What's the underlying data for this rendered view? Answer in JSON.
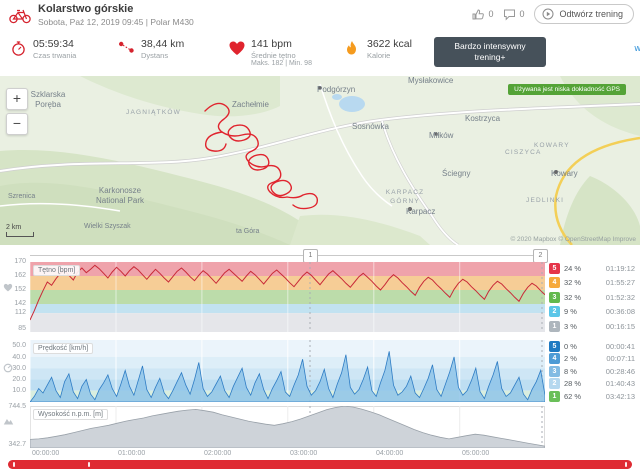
{
  "header": {
    "title": "Kolarstwo górskie",
    "subtitle": "Sobota, Paź 12, 2019 09:45  |  Polar M430",
    "likes": "0",
    "comments": "0",
    "replay_label": "Odtwórz trening"
  },
  "stats": {
    "duration": {
      "value": "05:59:34",
      "label": "Czas trwania"
    },
    "distance": {
      "value": "38,44 km",
      "label": "Dystans"
    },
    "heart_rate": {
      "value": "141 bpm",
      "label": "Średnie tętno",
      "minmax": "Maks. 182 | Min. 98"
    },
    "calories": {
      "value": "3622 kcal",
      "label": "Kalorie"
    },
    "intensity_badge": "Bardzo intensywny trening+",
    "more_link": "wi"
  },
  "map": {
    "zoom_in": "+",
    "zoom_out": "−",
    "gps_notice": "Używana jest niska dokładność GPS",
    "scale_label": "2 km",
    "attribution": "© 2020 Mapbox © OpenStreetMap Improve",
    "labels": [
      {
        "text": "Szklarska Poręba"
      },
      {
        "text": "JAGNIĄTKÓW"
      },
      {
        "text": "Zachełmie"
      },
      {
        "text": "Podgórzyn"
      },
      {
        "text": "Mysłakowice"
      },
      {
        "text": "Sosnówka"
      },
      {
        "text": "Miłków"
      },
      {
        "text": "Kostrzyca"
      },
      {
        "text": "CISZYCA"
      },
      {
        "text": "KOWARY"
      },
      {
        "text": "Kowary"
      },
      {
        "text": "Ściegny"
      },
      {
        "text": "KARPACZ GÓRNY"
      },
      {
        "text": "Karpacz"
      },
      {
        "text": "JEDLINKI"
      },
      {
        "text": "Karkonosze National Park"
      },
      {
        "text": "Wielki Szyszak"
      },
      {
        "text": "Szrenica"
      },
      {
        "text": "ta Góra"
      }
    ]
  },
  "charts": {
    "lap_markers": [
      "1",
      "2"
    ],
    "x_labels": [
      "00:00:00",
      "01:00:00",
      "02:00:00",
      "03:00:00",
      "04:00:00",
      "05:00:00"
    ],
    "heart_rate": {
      "label": "Tętno [bpm]",
      "y_labels": [
        "170",
        "162",
        "152",
        "142",
        "112",
        "85"
      ],
      "zones": [
        {
          "zone": "5",
          "pct": "24 %",
          "time": "01:19:12",
          "color": "#e5354a"
        },
        {
          "zone": "4",
          "pct": "32 %",
          "time": "01:55:27",
          "color": "#f6a93b"
        },
        {
          "zone": "3",
          "pct": "32 %",
          "time": "01:52:32",
          "color": "#63b94d"
        },
        {
          "zone": "2",
          "pct": "9 %",
          "time": "00:36:08",
          "color": "#5bc6e8"
        },
        {
          "zone": "1",
          "pct": "3 %",
          "time": "00:16:15",
          "color": "#aeb6bd"
        }
      ],
      "values": [
        98,
        112,
        128,
        142,
        155,
        150,
        160,
        168,
        172,
        165,
        158,
        170,
        176,
        169,
        174,
        180,
        175,
        168,
        161,
        170,
        177,
        171,
        164,
        172,
        178,
        173,
        166,
        159,
        167,
        174,
        168,
        161,
        155,
        163,
        171,
        176,
        170,
        163,
        157,
        165,
        172,
        167,
        160,
        153,
        161,
        169,
        174,
        168,
        162,
        156,
        164,
        171,
        166,
        159,
        152,
        160,
        168,
        173,
        167,
        161,
        154,
        148,
        156,
        164,
        170,
        165,
        158,
        151,
        159,
        167,
        172,
        166,
        160,
        153,
        147,
        155,
        163,
        168,
        162,
        156,
        149,
        143,
        151,
        160,
        166,
        161,
        154,
        148,
        141,
        135,
        147,
        156,
        162,
        158,
        151,
        145,
        138,
        132,
        144,
        153,
        159,
        155,
        148,
        142,
        135,
        129,
        141,
        150,
        156,
        152,
        145,
        139,
        132,
        126,
        138,
        147,
        153,
        149,
        142,
        136
      ]
    },
    "speed": {
      "label": "Prędkość [km/h]",
      "y_labels": [
        "50.0",
        "40.0",
        "30.0",
        "20.0",
        "10.0"
      ],
      "zones": [
        {
          "zone": "5",
          "pct": "0 %",
          "time": "00:00:41",
          "color": "#1f7ac2"
        },
        {
          "zone": "4",
          "pct": "2 %",
          "time": "00:07:11",
          "color": "#4d9bd5"
        },
        {
          "zone": "3",
          "pct": "8 %",
          "time": "00:28:46",
          "color": "#82bbe3"
        },
        {
          "zone": "2",
          "pct": "28 %",
          "time": "01:40:43",
          "color": "#b5d8ef"
        },
        {
          "zone": "1",
          "pct": "62 %",
          "time": "03:42:13",
          "color": "#6abf59"
        }
      ],
      "values": [
        0,
        5,
        12,
        8,
        15,
        22,
        10,
        4,
        18,
        25,
        9,
        3,
        14,
        20,
        7,
        2,
        11,
        17,
        24,
        12,
        5,
        16,
        28,
        14,
        6,
        19,
        32,
        11,
        4,
        13,
        21,
        8,
        3,
        10,
        18,
        26,
        15,
        7,
        20,
        35,
        12,
        5,
        9,
        16,
        23,
        10,
        4,
        14,
        22,
        30,
        13,
        6,
        17,
        25,
        11,
        3,
        12,
        19,
        27,
        9,
        5,
        15,
        24,
        38,
        14,
        6,
        10,
        18,
        29,
        12,
        4,
        16,
        26,
        42,
        13,
        7,
        11,
        20,
        31,
        10,
        5,
        17,
        28,
        45,
        15,
        6,
        9,
        14,
        23,
        8,
        4,
        12,
        21,
        33,
        11,
        5,
        16,
        27,
        40,
        13,
        6,
        10,
        19,
        30,
        9,
        3,
        14,
        24,
        36,
        12,
        5,
        8,
        15,
        22,
        7,
        2,
        11,
        18,
        28,
        6
      ]
    },
    "altitude": {
      "label": "Wysokość n.p.m. [m]",
      "y_max": "744.5",
      "y_min": "342.7",
      "values": [
        425,
        430,
        440,
        455,
        470,
        490,
        510,
        530,
        545,
        560,
        580,
        600,
        615,
        630,
        650,
        665,
        680,
        695,
        705,
        712,
        700,
        685,
        660,
        640,
        620,
        600,
        585,
        570,
        560,
        575,
        595,
        620,
        650,
        680,
        710,
        730,
        744,
        735,
        715,
        690,
        660,
        625,
        590,
        555,
        520,
        490,
        465,
        445,
        430,
        445,
        460,
        475,
        465,
        450,
        435,
        420,
        405,
        390,
        375,
        360
      ]
    }
  }
}
